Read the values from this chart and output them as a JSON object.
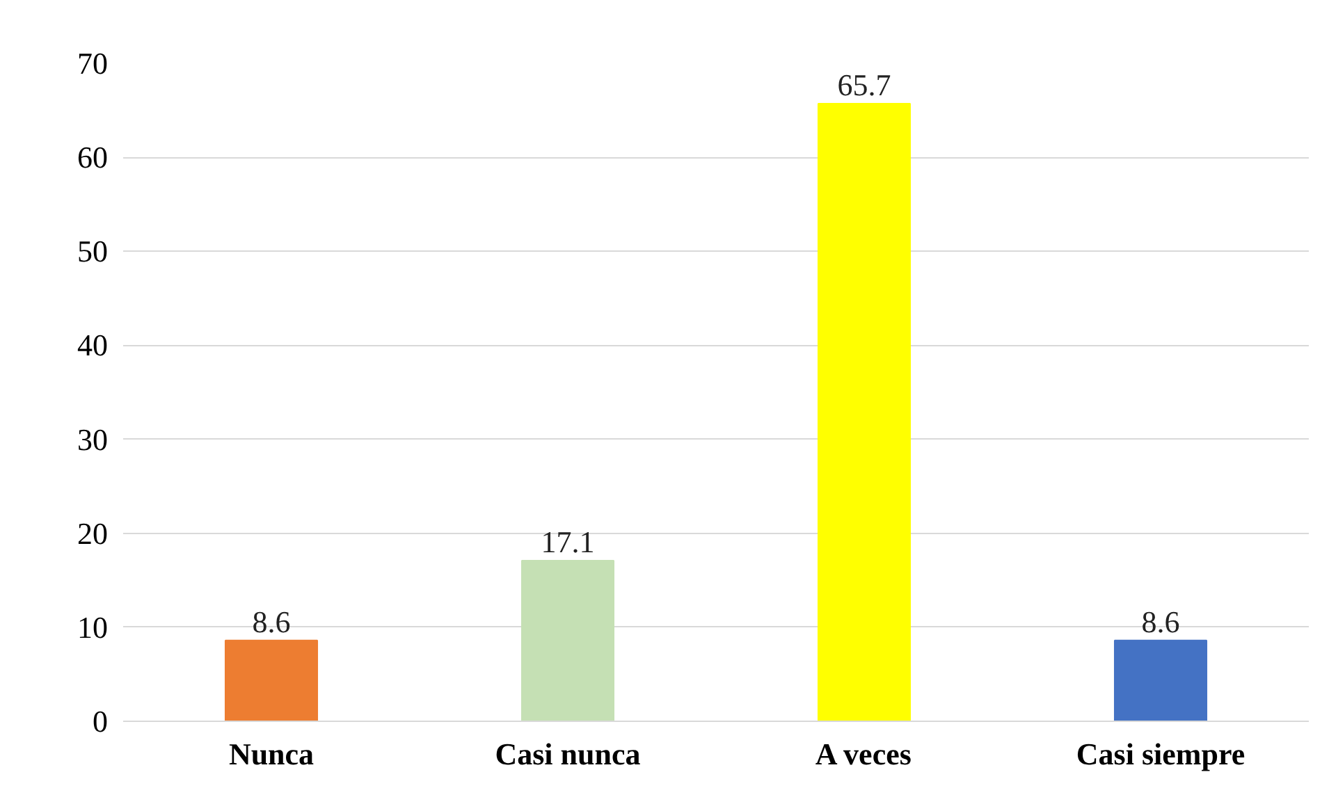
{
  "chart_data": {
    "type": "bar",
    "categories": [
      "Nunca",
      "Casi nunca",
      "A veces",
      "Casi siempre"
    ],
    "values": [
      8.6,
      17.1,
      65.7,
      8.6
    ],
    "colors": [
      "#ed7d31",
      "#c5e0b4",
      "#ffff00",
      "#4472c4"
    ],
    "ylim": [
      0,
      70
    ],
    "yticks": [
      0,
      10,
      20,
      30,
      40,
      50,
      60,
      70
    ],
    "grid": "y",
    "data_labels": true
  }
}
